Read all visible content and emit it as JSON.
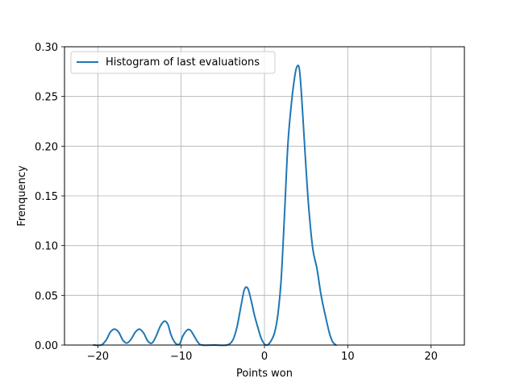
{
  "chart_data": {
    "type": "line",
    "title": "",
    "xlabel": "Points won",
    "ylabel": "Frenquency",
    "xlim": [
      -24,
      24
    ],
    "ylim": [
      0,
      0.3
    ],
    "grid": true,
    "legend_position": "top-left",
    "x_ticks": [
      {
        "value": -20,
        "label": "−20"
      },
      {
        "value": -10,
        "label": "−10"
      },
      {
        "value": 0,
        "label": "0"
      },
      {
        "value": 10,
        "label": "10"
      },
      {
        "value": 20,
        "label": "20"
      }
    ],
    "y_ticks": [
      {
        "value": 0.0,
        "label": "0.00"
      },
      {
        "value": 0.05,
        "label": "0.05"
      },
      {
        "value": 0.1,
        "label": "0.10"
      },
      {
        "value": 0.15,
        "label": "0.15"
      },
      {
        "value": 0.2,
        "label": "0.20"
      },
      {
        "value": 0.25,
        "label": "0.25"
      },
      {
        "value": 0.3,
        "label": "0.30"
      }
    ],
    "series": [
      {
        "name": "Histogram of last evaluations",
        "color": "#1f77b4",
        "points": [
          [
            -20.5,
            0.0
          ],
          [
            -19.6,
            0.0
          ],
          [
            -19.0,
            0.005
          ],
          [
            -18.5,
            0.013
          ],
          [
            -18.0,
            0.016
          ],
          [
            -17.5,
            0.013
          ],
          [
            -17.0,
            0.005
          ],
          [
            -16.5,
            0.002
          ],
          [
            -16.0,
            0.006
          ],
          [
            -15.5,
            0.013
          ],
          [
            -15.0,
            0.016
          ],
          [
            -14.5,
            0.012
          ],
          [
            -14.0,
            0.004
          ],
          [
            -13.5,
            0.002
          ],
          [
            -13.0,
            0.009
          ],
          [
            -12.5,
            0.019
          ],
          [
            -12.0,
            0.024
          ],
          [
            -11.6,
            0.021
          ],
          [
            -11.2,
            0.01
          ],
          [
            -10.7,
            0.002
          ],
          [
            -10.2,
            0.001
          ],
          [
            -9.8,
            0.009
          ],
          [
            -9.3,
            0.015
          ],
          [
            -8.9,
            0.015
          ],
          [
            -8.5,
            0.01
          ],
          [
            -8.0,
            0.003
          ],
          [
            -7.5,
            0.0
          ],
          [
            -6.0,
            0.0
          ],
          [
            -4.5,
            0.0
          ],
          [
            -3.8,
            0.005
          ],
          [
            -3.3,
            0.018
          ],
          [
            -2.8,
            0.04
          ],
          [
            -2.4,
            0.056
          ],
          [
            -2.0,
            0.057
          ],
          [
            -1.6,
            0.045
          ],
          [
            -1.2,
            0.03
          ],
          [
            -0.8,
            0.018
          ],
          [
            -0.4,
            0.007
          ],
          [
            0.0,
            0.001
          ],
          [
            0.3,
            0.0
          ],
          [
            0.7,
            0.003
          ],
          [
            1.2,
            0.012
          ],
          [
            1.6,
            0.03
          ],
          [
            2.0,
            0.065
          ],
          [
            2.4,
            0.13
          ],
          [
            2.8,
            0.2
          ],
          [
            3.2,
            0.24
          ],
          [
            3.6,
            0.268
          ],
          [
            3.9,
            0.28
          ],
          [
            4.2,
            0.277
          ],
          [
            4.5,
            0.245
          ],
          [
            4.9,
            0.19
          ],
          [
            5.3,
            0.14
          ],
          [
            5.8,
            0.097
          ],
          [
            6.3,
            0.077
          ],
          [
            6.8,
            0.05
          ],
          [
            7.3,
            0.03
          ],
          [
            7.8,
            0.012
          ],
          [
            8.2,
            0.003
          ],
          [
            8.6,
            0.0
          ]
        ]
      }
    ]
  }
}
